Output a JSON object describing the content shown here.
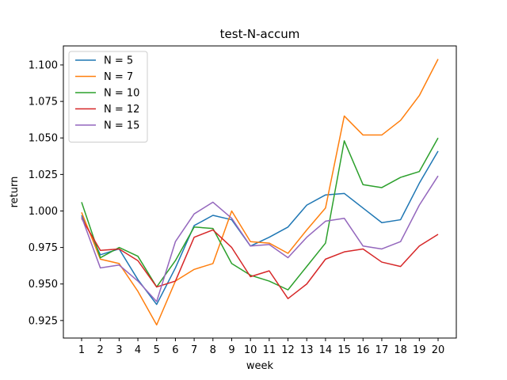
{
  "chart_data": {
    "type": "line",
    "title": "test-N-accum",
    "xlabel": "week",
    "ylabel": "return",
    "x": [
      1,
      2,
      3,
      4,
      5,
      6,
      7,
      8,
      9,
      10,
      11,
      12,
      13,
      14,
      15,
      16,
      17,
      18,
      19,
      20
    ],
    "xticks": [
      "1",
      "2",
      "3",
      "4",
      "5",
      "6",
      "7",
      "8",
      "9",
      "10",
      "11",
      "12",
      "13",
      "14",
      "15",
      "16",
      "17",
      "18",
      "19",
      "20"
    ],
    "ylim": [
      0.913,
      1.113
    ],
    "yticks": [
      0.925,
      0.95,
      0.975,
      1.0,
      1.025,
      1.05,
      1.075,
      1.1
    ],
    "ytick_labels": [
      "0.925",
      "0.950",
      "0.975",
      "1.000",
      "1.025",
      "1.050",
      "1.075",
      "1.100"
    ],
    "grid": false,
    "legend_position": "top-left",
    "series": [
      {
        "name": "N = 5",
        "color": "#1f77b4",
        "values": [
          0.997,
          0.97,
          0.974,
          0.953,
          0.936,
          0.961,
          0.99,
          0.997,
          0.994,
          0.976,
          0.982,
          0.989,
          1.004,
          1.011,
          1.012,
          1.002,
          0.992,
          0.994,
          1.019,
          1.041
        ]
      },
      {
        "name": "N = 7",
        "color": "#ff7f0e",
        "values": [
          0.999,
          0.967,
          0.964,
          0.945,
          0.922,
          0.952,
          0.96,
          0.964,
          1.0,
          0.979,
          0.978,
          0.971,
          0.987,
          1.002,
          1.065,
          1.052,
          1.052,
          1.062,
          1.079,
          1.104
        ]
      },
      {
        "name": "N = 10",
        "color": "#2ca02c",
        "values": [
          1.006,
          0.968,
          0.975,
          0.969,
          0.948,
          0.966,
          0.989,
          0.988,
          0.964,
          0.956,
          0.952,
          0.946,
          0.962,
          0.978,
          1.048,
          1.018,
          1.016,
          1.023,
          1.027,
          1.05
        ]
      },
      {
        "name": "N = 12",
        "color": "#d62728",
        "values": [
          0.995,
          0.973,
          0.974,
          0.966,
          0.948,
          0.952,
          0.982,
          0.987,
          0.975,
          0.955,
          0.959,
          0.94,
          0.95,
          0.967,
          0.972,
          0.974,
          0.965,
          0.962,
          0.976,
          0.984
        ]
      },
      {
        "name": "N = 15",
        "color": "#9467bd",
        "values": [
          0.996,
          0.961,
          0.963,
          0.952,
          0.938,
          0.979,
          0.998,
          1.006,
          0.995,
          0.976,
          0.977,
          0.968,
          0.982,
          0.993,
          0.995,
          0.976,
          0.974,
          0.979,
          1.004,
          1.024
        ]
      }
    ]
  }
}
